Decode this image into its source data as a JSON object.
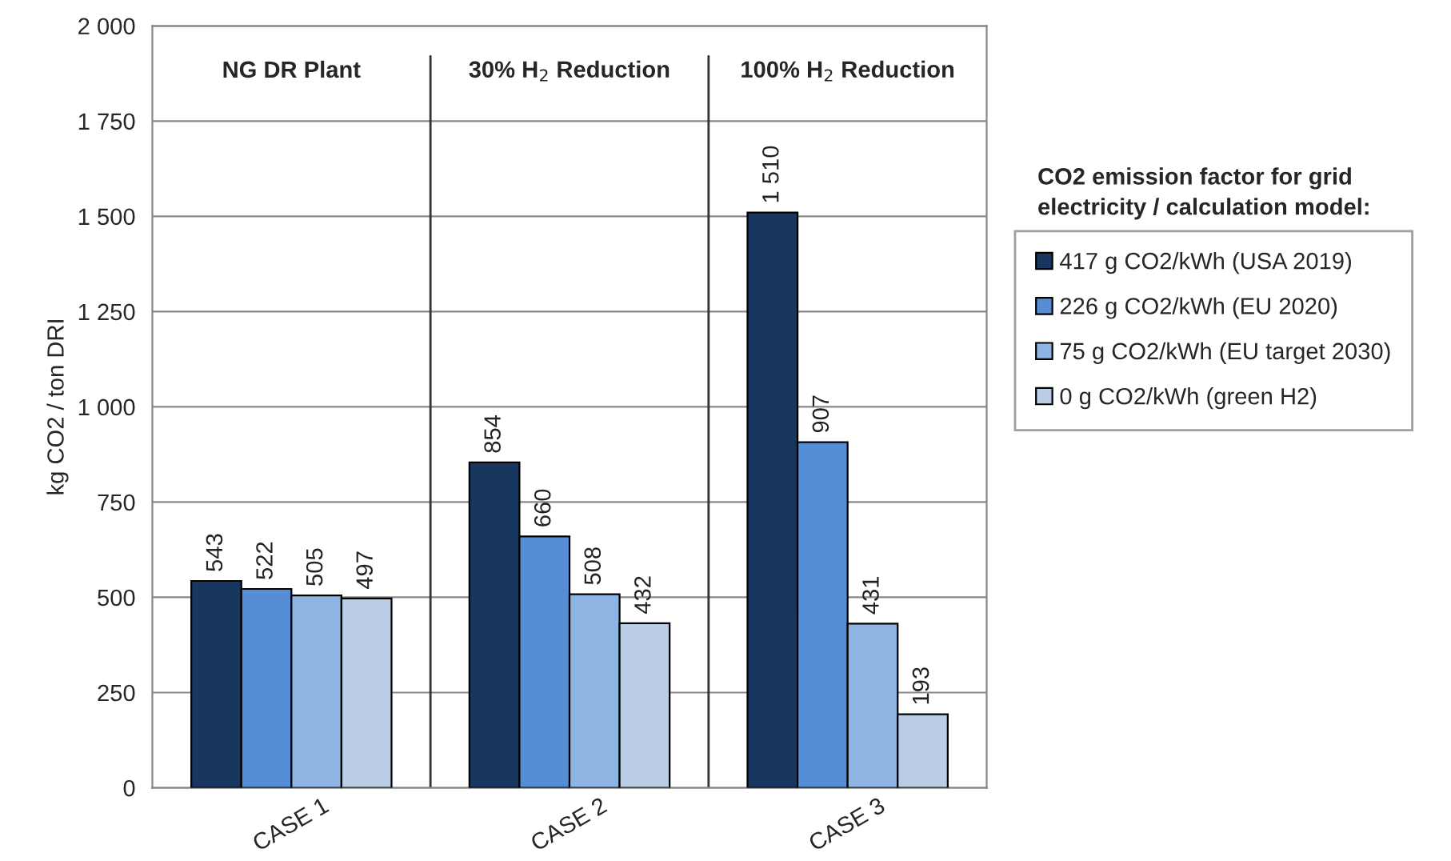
{
  "chart_data": {
    "type": "bar",
    "ylabel": "kg CO2 / ton DRI",
    "categories": [
      "CASE 1",
      "CASE 2",
      "CASE 3"
    ],
    "series": [
      {
        "name": "417 g CO2/kWh (USA 2019)",
        "color": "#17375e",
        "values": [
          543,
          854,
          1510
        ],
        "value_labels": [
          "543",
          "854",
          "1 510"
        ]
      },
      {
        "name": "226 g CO2/kWh (EU 2020)",
        "color": "#558ed5",
        "values": [
          522,
          660,
          907
        ],
        "value_labels": [
          "522",
          "660",
          "907"
        ]
      },
      {
        "name": "75 g CO2/kWh (EU target 2030)",
        "color": "#8eb4e3",
        "values": [
          505,
          508,
          431
        ],
        "value_labels": [
          "505",
          "508",
          "431"
        ]
      },
      {
        "name": "0 g CO2/kWh (green H2)",
        "color": "#b9cde5",
        "values": [
          497,
          432,
          193
        ],
        "value_labels": [
          "497",
          "432",
          "193"
        ]
      }
    ],
    "legend_title": "CO2 emission factor for grid electricity / calculation model:",
    "legend": "right",
    "annotations": [
      "NG DR Plant",
      "30% H$_{2}$ Reduction",
      "100% H$_{2}$ Reduction"
    ],
    "ylim": [
      0,
      2000
    ],
    "yticks": [
      0,
      250,
      500,
      750,
      {
        "value": 1000,
        "label": "1 000"
      },
      {
        "value": 1250,
        "label": "1 250"
      },
      {
        "value": 1500,
        "label": "1 500"
      },
      {
        "value": 1750,
        "label": "1 750"
      },
      {
        "value": 2000,
        "label": "2 000"
      }
    ],
    "grid": "y"
  }
}
